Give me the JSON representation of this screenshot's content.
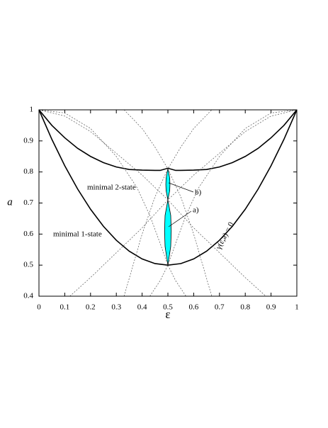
{
  "chart_data": {
    "type": "line",
    "xlabel": "ε",
    "ylabel": "a",
    "xlim": [
      0,
      1
    ],
    "ylim": [
      0.4,
      1
    ],
    "xticks": [
      0,
      0.1,
      0.2,
      0.3,
      0.4,
      0.5,
      0.6,
      0.7,
      0.8,
      0.9,
      1
    ],
    "yticks": [
      0.4,
      0.5,
      0.6,
      0.7,
      0.8,
      0.9,
      1
    ],
    "series": [
      {
        "style": "solid",
        "color": "#000000",
        "x": [
          0,
          0.05,
          0.1,
          0.15,
          0.2,
          0.25,
          0.3,
          0.35,
          0.4,
          0.45,
          0.5,
          0.55,
          0.6,
          0.65,
          0.7,
          0.75,
          0.8,
          0.85,
          0.9,
          0.95,
          1
        ],
        "values": [
          1,
          0.905,
          0.82,
          0.745,
          0.68,
          0.625,
          0.58,
          0.545,
          0.52,
          0.505,
          0.5,
          0.505,
          0.52,
          0.545,
          0.58,
          0.625,
          0.68,
          0.745,
          0.82,
          0.905,
          1
        ]
      },
      {
        "style": "solid",
        "color": "#000000",
        "x": [
          0,
          0.05,
          0.1,
          0.15,
          0.2,
          0.25,
          0.3,
          0.35,
          0.4,
          0.45,
          0.47,
          0.5,
          0.53,
          0.55,
          0.6,
          0.65,
          0.7,
          0.75,
          0.8,
          0.85,
          0.9,
          0.95,
          1
        ],
        "values": [
          1,
          0.95,
          0.91,
          0.876,
          0.85,
          0.83,
          0.816,
          0.808,
          0.806,
          0.805,
          0.805,
          0.812,
          0.805,
          0.805,
          0.806,
          0.808,
          0.816,
          0.83,
          0.85,
          0.876,
          0.91,
          0.95,
          1
        ]
      },
      {
        "style": "dashed",
        "color": "#555555",
        "x": [
          0,
          0.1,
          0.2,
          0.3,
          0.4,
          0.5,
          0.6,
          0.7,
          0.8,
          0.88
        ],
        "values": [
          1,
          0.98,
          0.93,
          0.86,
          0.79,
          0.71,
          0.62,
          0.54,
          0.46,
          0.4
        ]
      },
      {
        "style": "dashed",
        "color": "#555555",
        "x": [
          0.12,
          0.2,
          0.3,
          0.4,
          0.5,
          0.6,
          0.7,
          0.8,
          0.9,
          1
        ],
        "values": [
          0.4,
          0.46,
          0.54,
          0.62,
          0.71,
          0.79,
          0.86,
          0.93,
          0.98,
          1
        ]
      },
      {
        "style": "dashed",
        "color": "#555555",
        "x": [
          0.43,
          0.47,
          0.5,
          0.53,
          0.57,
          0.62,
          0.7,
          0.8,
          0.9,
          1
        ],
        "values": [
          0.4,
          0.45,
          0.5,
          0.57,
          0.66,
          0.75,
          0.85,
          0.94,
          0.99,
          1
        ]
      },
      {
        "style": "dashed",
        "color": "#555555",
        "x": [
          0,
          0.1,
          0.2,
          0.3,
          0.38,
          0.43,
          0.47,
          0.5,
          0.53,
          0.57
        ],
        "values": [
          1,
          0.99,
          0.94,
          0.85,
          0.75,
          0.66,
          0.57,
          0.5,
          0.45,
          0.4
        ]
      },
      {
        "style": "dashed",
        "color": "#555555",
        "x": [
          0.33,
          0.4,
          0.45,
          0.5,
          0.55,
          0.6,
          0.67
        ],
        "values": [
          1,
          0.94,
          0.88,
          0.81,
          0.72,
          0.6,
          0.4
        ]
      },
      {
        "style": "dashed",
        "color": "#555555",
        "x": [
          0.33,
          0.4,
          0.45,
          0.5,
          0.55,
          0.6,
          0.67
        ],
        "values": [
          0.4,
          0.6,
          0.72,
          0.81,
          0.88,
          0.94,
          1
        ]
      }
    ],
    "shaded": [
      {
        "color": "#00ffff",
        "x": [
          0.5,
          0.489,
          0.487,
          0.489,
          0.5,
          0.511,
          0.513,
          0.511,
          0.5
        ],
        "y": [
          0.5,
          0.56,
          0.61,
          0.66,
          0.71,
          0.66,
          0.61,
          0.56,
          0.5
        ]
      },
      {
        "color": "#00ffff",
        "x": [
          0.5,
          0.493,
          0.492,
          0.493,
          0.5,
          0.507,
          0.508,
          0.507,
          0.5
        ],
        "y": [
          0.71,
          0.74,
          0.76,
          0.78,
          0.812,
          0.78,
          0.76,
          0.74,
          0.71
        ]
      }
    ],
    "annotations": [
      "minimal 2-state",
      "minimal 1-state",
      "b)",
      "a)",
      "γ(ε,a) = 0"
    ]
  }
}
